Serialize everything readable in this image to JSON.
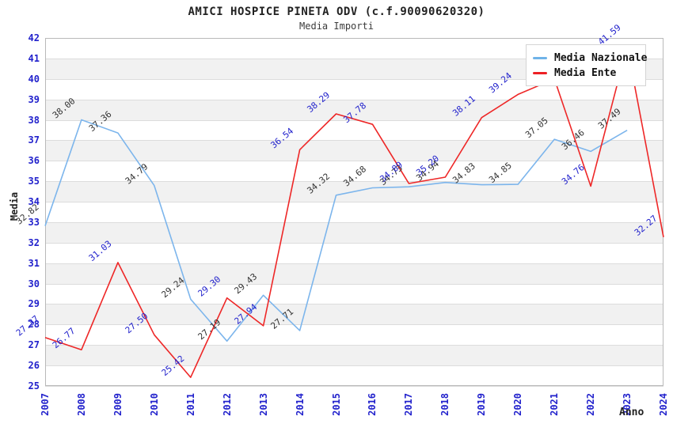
{
  "title": "AMICI HOSPICE PINETA ODV (c.f.90090620320)",
  "subtitle": "Media Importi",
  "y_axis": {
    "title": "Media",
    "min": 25,
    "max": 42,
    "tick_labels": [
      "25",
      "26",
      "27",
      "28",
      "29",
      "30",
      "31",
      "32",
      "33",
      "34",
      "35",
      "36",
      "37",
      "38",
      "39",
      "40",
      "41",
      "42"
    ]
  },
  "x_axis": {
    "title": "Anno",
    "categories": [
      "2007",
      "2008",
      "2009",
      "2010",
      "2011",
      "2012",
      "2013",
      "2014",
      "2015",
      "2016",
      "2017",
      "2018",
      "2019",
      "2020",
      "2021",
      "2022",
      "2023",
      "2024"
    ]
  },
  "legend": {
    "items": [
      {
        "label": "Media Nazionale",
        "color": "#6fb3e8"
      },
      {
        "label": "Media Ente",
        "color": "#ed2024"
      }
    ]
  },
  "colors": {
    "nazionale_line": "#7cb5ec",
    "ente_line": "#ee2727",
    "nazionale_label": "#333333",
    "ente_label": "#2222cc",
    "axis_label": "#2222cc",
    "band_gray": "#f1f1f1",
    "band_white": "#ffffff"
  },
  "chart_data": {
    "type": "line",
    "x": [
      2007,
      2008,
      2009,
      2010,
      2011,
      2012,
      2013,
      2014,
      2015,
      2016,
      2017,
      2018,
      2019,
      2020,
      2021,
      2022,
      2023,
      2024
    ],
    "series": [
      {
        "name": "Media Nazionale",
        "color": "#7cb5ec",
        "label_color": "#333333",
        "values": [
          32.82,
          38.0,
          37.36,
          34.79,
          29.24,
          27.19,
          29.43,
          27.71,
          34.32,
          34.68,
          34.73,
          34.94,
          34.83,
          34.85,
          37.05,
          36.46,
          37.49,
          null
        ],
        "hidden_label_indices": []
      },
      {
        "name": "Media Ente",
        "color": "#ee2727",
        "label_color": "#2222cc",
        "values": [
          27.37,
          26.77,
          31.03,
          27.5,
          25.42,
          29.3,
          27.94,
          36.54,
          38.29,
          37.78,
          34.89,
          35.2,
          38.11,
          39.24,
          40.0,
          34.76,
          41.59,
          32.27
        ],
        "hidden_label_indices": [
          14
        ]
      }
    ],
    "ylim": [
      25,
      42
    ],
    "grid": "horizontal-bands",
    "legend_position": "top-right-inside"
  }
}
